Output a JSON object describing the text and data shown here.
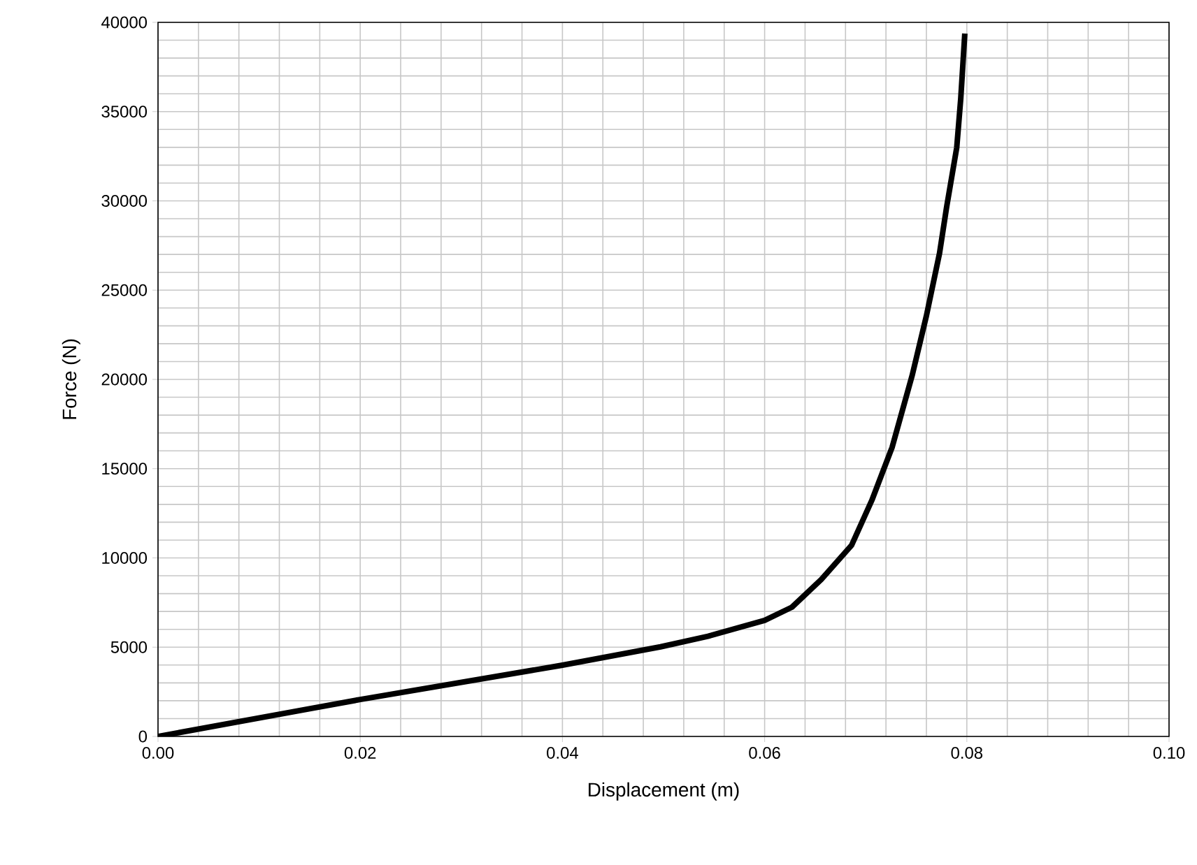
{
  "chart_data": {
    "type": "line",
    "xlabel": "Displacement (m)",
    "ylabel": "Force (N)",
    "xlim": [
      0,
      0.1
    ],
    "ylim": [
      0,
      40000
    ],
    "xticks": [
      {
        "value": 0,
        "label": "0.00"
      },
      {
        "value": 0.02,
        "label": "0.02"
      },
      {
        "value": 0.04,
        "label": "0.04"
      },
      {
        "value": 0.06,
        "label": "0.06"
      },
      {
        "value": 0.08,
        "label": "0.08"
      },
      {
        "value": 0.1,
        "label": "0.10"
      }
    ],
    "yticks": [
      0,
      5000,
      10000,
      15000,
      20000,
      25000,
      30000,
      35000,
      40000
    ],
    "grid": true,
    "marker": "none",
    "line_style": "solid",
    "series": [
      {
        "color": "#000000",
        "x": [
          0,
          0.02,
          0.04,
          0.0497,
          0.0544,
          0.06,
          0.0627,
          0.0656,
          0.0686,
          0.0706,
          0.0726,
          0.0746,
          0.076,
          0.0773,
          0.078,
          0.079,
          0.0794,
          0.0798
        ],
        "values": [
          0,
          2070,
          3990,
          5020,
          5610,
          6500,
          7240,
          8790,
          10710,
          13220,
          16180,
          20240,
          23560,
          27070,
          29650,
          32980,
          35750,
          39370
        ]
      }
    ]
  }
}
